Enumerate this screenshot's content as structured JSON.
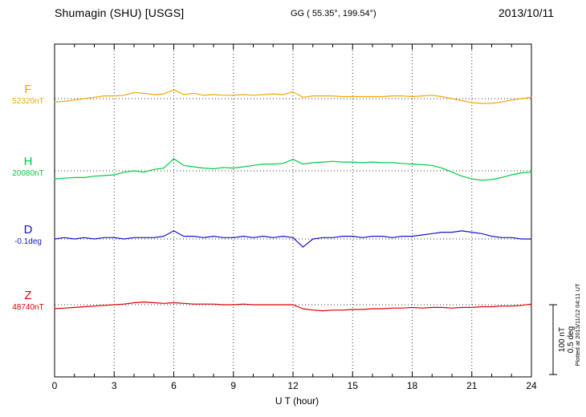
{
  "header": {
    "station": "Shumagin (SHU)  [USGS]",
    "gg": "GG ( 55.35°, 199.54°)",
    "date": "2013/10/11"
  },
  "xaxis": {
    "label": "U T (hour)",
    "ticks": [
      0,
      3,
      6,
      9,
      12,
      15,
      18,
      21,
      24
    ],
    "min": 0,
    "max": 24
  },
  "scalebar": {
    "nt_label": "100 nT",
    "deg_label": "0.5 deg"
  },
  "footer_note": "Plotted at 2013/11/12 04:11 UT",
  "chart_data": {
    "type": "line",
    "title": "Shumagin (SHU) magnetogram 2013/10/11",
    "xlabel": "U T (hour)",
    "x_range_hours": [
      0,
      24
    ],
    "grid": "dotted vertical every 3 hours; dotted horizontal baseline per trace",
    "scale": {
      "nT_per_div": 100,
      "deg_per_div": 0.5
    },
    "x_hours": [
      0,
      0.5,
      1,
      1.5,
      2,
      2.5,
      3,
      3.5,
      4,
      4.5,
      5,
      5.5,
      6,
      6.5,
      7,
      7.5,
      8,
      8.5,
      9,
      9.5,
      10,
      10.5,
      11,
      11.5,
      12,
      12.5,
      13,
      13.5,
      14,
      14.5,
      15,
      15.5,
      16,
      16.5,
      17,
      17.5,
      18,
      18.5,
      19,
      19.5,
      20,
      20.5,
      21,
      21.5,
      22,
      22.5,
      23,
      23.5,
      24
    ],
    "series": [
      {
        "name": "F",
        "baseline_label": "52320nT",
        "baseline_value": 52320,
        "unit": "nT",
        "color": "#F2A900",
        "deviations": [
          -5,
          -4,
          -2,
          0,
          2,
          4,
          4,
          5,
          9,
          8,
          6,
          7,
          13,
          6,
          8,
          5,
          6,
          5,
          5,
          6,
          5,
          6,
          7,
          6,
          10,
          2,
          4,
          4,
          4,
          3,
          3,
          3,
          3,
          3,
          4,
          4,
          3,
          4,
          5,
          3,
          0,
          -3,
          -6,
          -7,
          -7,
          -5,
          -2,
          0,
          2
        ]
      },
      {
        "name": "H",
        "baseline_label": "20080nT",
        "baseline_value": 20080,
        "unit": "nT",
        "color": "#00CC44",
        "deviations": [
          -12,
          -11,
          -10,
          -10,
          -8,
          -7,
          -6,
          -2,
          0,
          -2,
          2,
          4,
          18,
          8,
          6,
          4,
          3,
          5,
          4,
          6,
          8,
          10,
          10,
          11,
          17,
          10,
          12,
          13,
          14,
          13,
          13,
          12,
          13,
          12,
          12,
          11,
          10,
          9,
          8,
          4,
          -2,
          -8,
          -12,
          -14,
          -13,
          -10,
          -6,
          -3,
          -2
        ]
      },
      {
        "name": "D",
        "baseline_label": "-0.1deg",
        "baseline_value": -0.1,
        "unit": "deg",
        "color": "#1414CC",
        "deviations": [
          0.0,
          0.01,
          0.0,
          0.01,
          0.0,
          0.01,
          0.01,
          0.0,
          0.01,
          0.01,
          0.01,
          0.02,
          0.06,
          0.02,
          0.02,
          0.01,
          0.02,
          0.01,
          0.01,
          0.02,
          0.01,
          0.02,
          0.01,
          0.02,
          0.01,
          -0.06,
          0.0,
          0.01,
          0.01,
          0.02,
          0.02,
          0.01,
          0.02,
          0.02,
          0.01,
          0.02,
          0.02,
          0.03,
          0.04,
          0.05,
          0.05,
          0.06,
          0.05,
          0.04,
          0.02,
          0.01,
          0.01,
          0.0,
          0.0
        ]
      },
      {
        "name": "Z",
        "baseline_label": "48740nT",
        "baseline_value": 48740,
        "unit": "nT",
        "color": "#DD0000",
        "deviations": [
          -6,
          -5,
          -4,
          -3,
          -2,
          -1,
          0,
          1,
          3,
          4,
          3,
          2,
          3,
          2,
          1,
          1,
          1,
          0,
          0,
          1,
          0,
          0,
          0,
          0,
          0,
          -6,
          -8,
          -9,
          -8,
          -8,
          -7,
          -7,
          -6,
          -6,
          -5,
          -5,
          -4,
          -5,
          -4,
          -4,
          -5,
          -4,
          -4,
          -3,
          -3,
          -2,
          -2,
          -1,
          1
        ]
      }
    ]
  }
}
